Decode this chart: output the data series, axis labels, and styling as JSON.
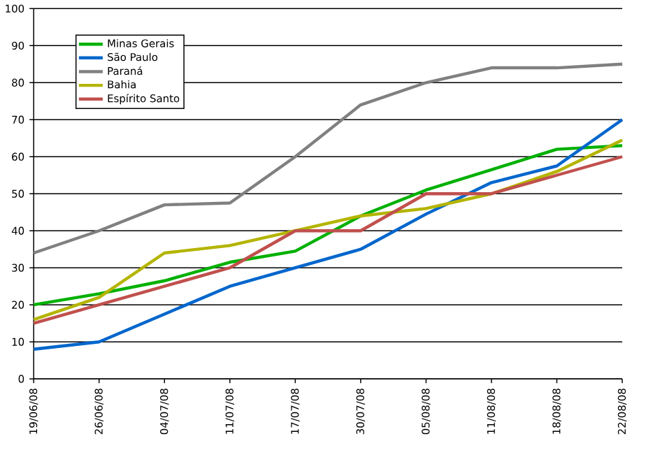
{
  "chart_data": {
    "type": "line",
    "categories": [
      "19/06/08",
      "26/06/08",
      "04/07/08",
      "11/07/08",
      "17/07/08",
      "30/07/08",
      "05/08/08",
      "11/08/08",
      "18/08/08",
      "22/08/08"
    ],
    "series": [
      {
        "name": "Minas Gerais",
        "color": "#00b000",
        "values": [
          20,
          23,
          26.5,
          31.5,
          34.5,
          44,
          51,
          56.5,
          62,
          63
        ]
      },
      {
        "name": "São Paulo",
        "color": "#0066cc",
        "values": [
          8,
          10,
          17.5,
          25,
          30,
          35,
          44.5,
          53,
          57.5,
          70
        ]
      },
      {
        "name": "Paraná",
        "color": "#808080",
        "values": [
          34,
          40,
          47,
          47.5,
          60,
          74,
          80,
          84,
          84,
          85
        ]
      },
      {
        "name": "Bahia",
        "color": "#b4b400",
        "values": [
          16,
          22,
          34,
          36,
          40,
          44,
          46,
          50,
          56,
          64.5
        ]
      },
      {
        "name": "Espírito Santo",
        "color": "#c0504d",
        "values": [
          15,
          20,
          25,
          30,
          40,
          40,
          50,
          50,
          55,
          60
        ]
      }
    ],
    "ylim": [
      0,
      100
    ],
    "yticks": [
      0,
      10,
      20,
      30,
      40,
      50,
      60,
      70,
      80,
      90,
      100
    ],
    "grid": "y",
    "legend": "top left",
    "marker": "none",
    "line_style": "solid"
  }
}
